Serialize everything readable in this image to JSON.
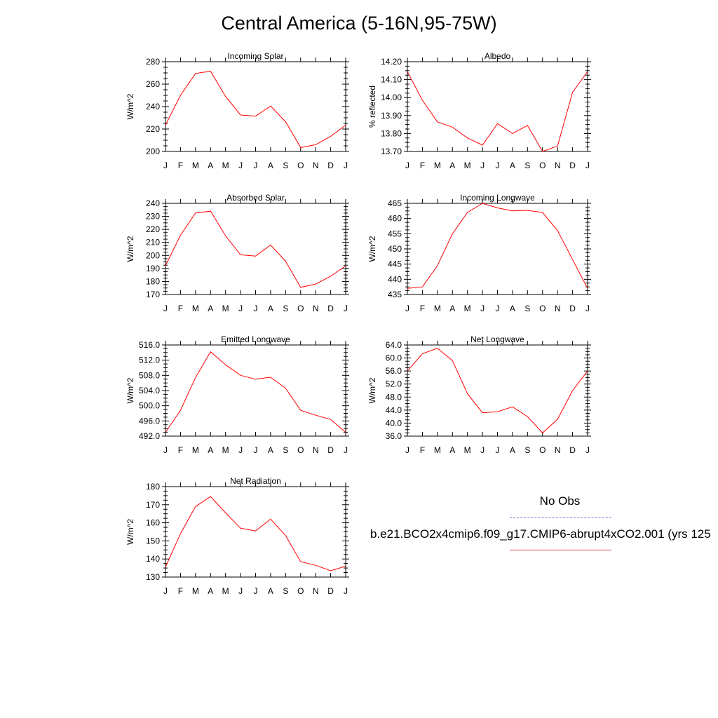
{
  "title": "Central America (5-16N,95-75W)",
  "colors": {
    "model": "#ff0000",
    "obs": "#7b7bd6",
    "axis": "#000000"
  },
  "legend": {
    "obs_label": "No Obs",
    "model_label": "b.e21.BCO2x4cmip6.f09_g17.CMIP6-abrupt4xCO2.001 (yrs 125"
  },
  "chart_data": [
    {
      "type": "line",
      "title": "Incoming Solar",
      "ylabel": "W/m^2",
      "categories": [
        "J",
        "F",
        "M",
        "A",
        "M",
        "J",
        "J",
        "A",
        "S",
        "O",
        "N",
        "D",
        "J"
      ],
      "ylim": [
        200,
        280
      ],
      "yticks": [
        "200",
        "220",
        "240",
        "260",
        "280"
      ],
      "series": [
        {
          "values": [
            223.5,
            250,
            269.5,
            271.5,
            249,
            232.5,
            231.5,
            240.5,
            226.5,
            203.5,
            206,
            213.5,
            223.5
          ]
        }
      ]
    },
    {
      "type": "line",
      "title": "Albedo",
      "ylabel": "% reflected",
      "categories": [
        "J",
        "F",
        "M",
        "A",
        "M",
        "J",
        "J",
        "A",
        "S",
        "O",
        "N",
        "D",
        "J"
      ],
      "ylim": [
        13.7,
        14.2
      ],
      "yticks": [
        "13.70",
        "13.80",
        "13.90",
        "14.00",
        "14.10",
        "14.20"
      ],
      "series": [
        {
          "values": [
            14.145,
            13.985,
            13.865,
            13.835,
            13.775,
            13.735,
            13.855,
            13.8,
            13.845,
            13.7,
            13.73,
            14.03,
            14.145
          ]
        }
      ]
    },
    {
      "type": "line",
      "title": "Absorbed Solar",
      "ylabel": "W/m^2",
      "categories": [
        "J",
        "F",
        "M",
        "A",
        "M",
        "J",
        "J",
        "A",
        "S",
        "O",
        "N",
        "D",
        "J"
      ],
      "ylim": [
        170,
        240
      ],
      "yticks": [
        "170",
        "180",
        "190",
        "200",
        "210",
        "220",
        "230",
        "240"
      ],
      "series": [
        {
          "values": [
            192,
            215.5,
            232.5,
            234,
            215,
            200.5,
            199.5,
            208,
            195.5,
            175.5,
            178,
            184,
            192
          ]
        }
      ]
    },
    {
      "type": "line",
      "title": "Incoming Longwave",
      "ylabel": "W/m^2",
      "categories": [
        "J",
        "F",
        "M",
        "A",
        "M",
        "J",
        "J",
        "A",
        "S",
        "O",
        "N",
        "D",
        "J"
      ],
      "ylim": [
        435,
        465
      ],
      "yticks": [
        "435",
        "440",
        "445",
        "450",
        "455",
        "460",
        "465"
      ],
      "series": [
        {
          "values": [
            437,
            437.5,
            444.5,
            455,
            462,
            465,
            463.5,
            462.5,
            462.7,
            462,
            456,
            446.5,
            437
          ]
        }
      ]
    },
    {
      "type": "line",
      "title": "Emitted Longwave",
      "ylabel": "W/m^2",
      "categories": [
        "J",
        "F",
        "M",
        "A",
        "M",
        "J",
        "J",
        "A",
        "S",
        "O",
        "N",
        "D",
        "J"
      ],
      "ylim": [
        492,
        516
      ],
      "yticks": [
        "492.0",
        "496.0",
        "500.0",
        "504.0",
        "508.0",
        "512.0",
        "516.0"
      ],
      "series": [
        {
          "values": [
            493,
            498.8,
            507.4,
            514.2,
            510.8,
            508,
            507,
            507.5,
            504.6,
            498.8,
            497.5,
            496.4,
            493
          ]
        }
      ]
    },
    {
      "type": "line",
      "title": "Net Longwave",
      "ylabel": "W/m^2",
      "categories": [
        "J",
        "F",
        "M",
        "A",
        "M",
        "J",
        "J",
        "A",
        "S",
        "O",
        "N",
        "D",
        "J"
      ],
      "ylim": [
        36,
        64
      ],
      "yticks": [
        "36.0",
        "40.0",
        "44.0",
        "48.0",
        "52.0",
        "56.0",
        "60.0",
        "64.0"
      ],
      "series": [
        {
          "values": [
            56,
            61.3,
            63,
            59.2,
            49,
            43.2,
            43.5,
            45,
            42,
            37,
            41.2,
            50,
            56
          ]
        }
      ]
    },
    {
      "type": "line",
      "title": "Net Radiation",
      "ylabel": "W/m^2",
      "categories": [
        "J",
        "F",
        "M",
        "A",
        "M",
        "J",
        "J",
        "A",
        "S",
        "O",
        "N",
        "D",
        "J"
      ],
      "ylim": [
        130,
        180
      ],
      "yticks": [
        "130",
        "140",
        "150",
        "160",
        "170",
        "180"
      ],
      "series": [
        {
          "values": [
            135.5,
            154,
            169,
            174.5,
            165.5,
            157,
            155.5,
            162,
            153,
            138.5,
            136.5,
            133.5,
            136
          ]
        }
      ]
    }
  ]
}
